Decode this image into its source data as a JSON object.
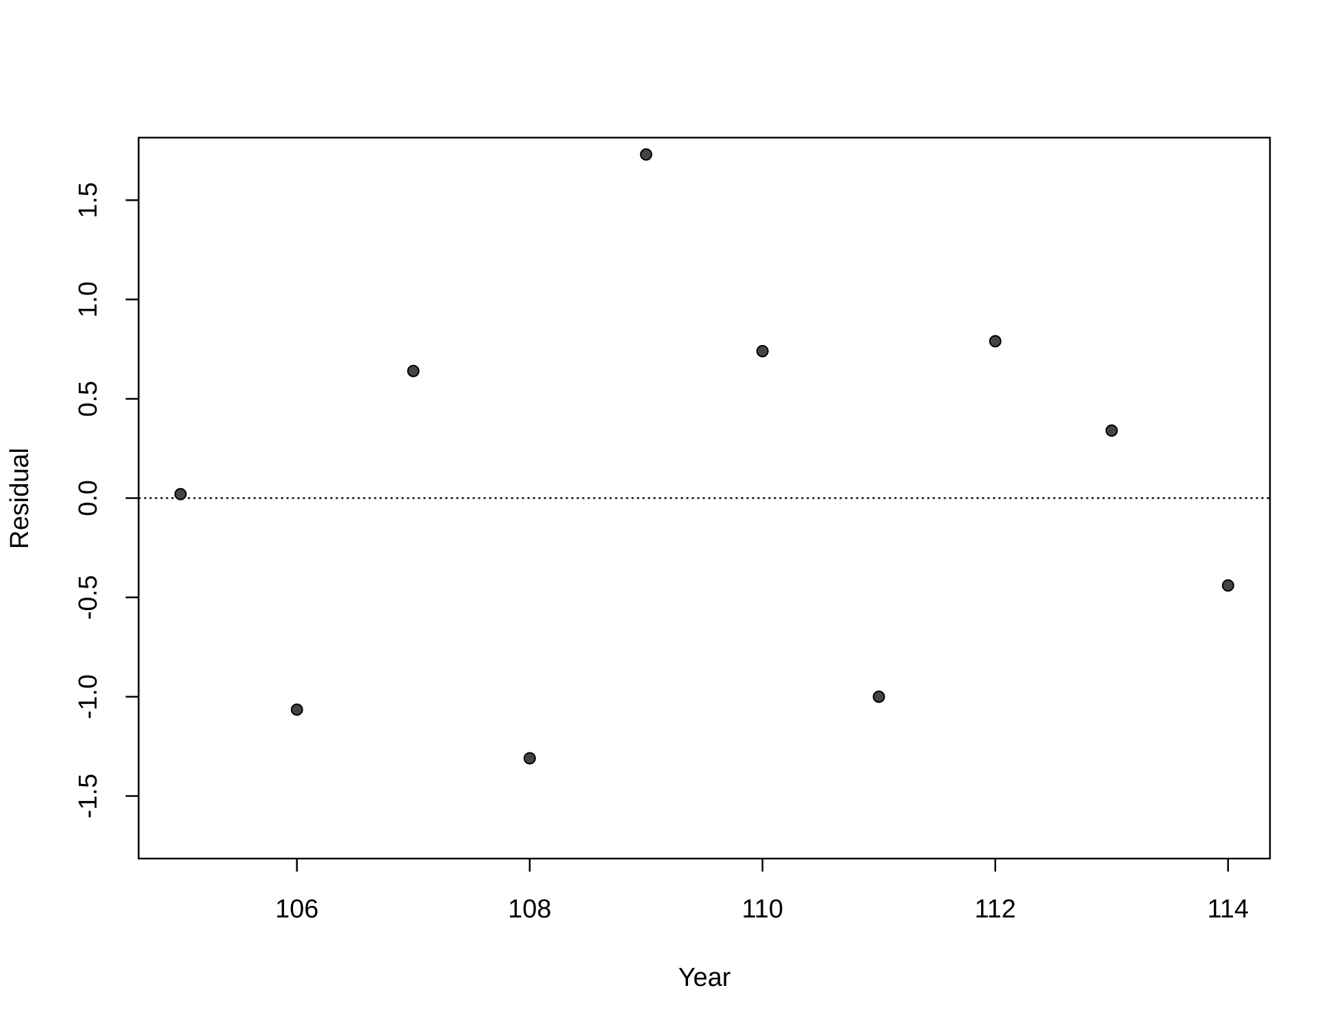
{
  "chart_data": {
    "type": "scatter",
    "x_label": "Year",
    "y_label": "Residual",
    "x": [
      105,
      106,
      107,
      108,
      109,
      110,
      111,
      112,
      113,
      114
    ],
    "series": [
      {
        "color": "#444444",
        "values": [
          0.02,
          -1.065,
          0.64,
          -1.31,
          1.73,
          0.74,
          -1.0,
          0.79,
          0.34,
          -0.44
        ]
      }
    ],
    "xlim": [
      104.64,
      114.36
    ],
    "xticks": [
      106,
      108,
      110,
      112,
      114
    ],
    "ylim": [
      -1.815,
      1.815
    ],
    "yticks": [
      -1.5,
      {
        "value": -1,
        "label": "-1.0"
      },
      -0.5,
      {
        "value": 0,
        "label": "0.0"
      },
      0.5,
      {
        "value": 1,
        "label": "1.0"
      },
      1.5
    ],
    "hline": 0
  }
}
